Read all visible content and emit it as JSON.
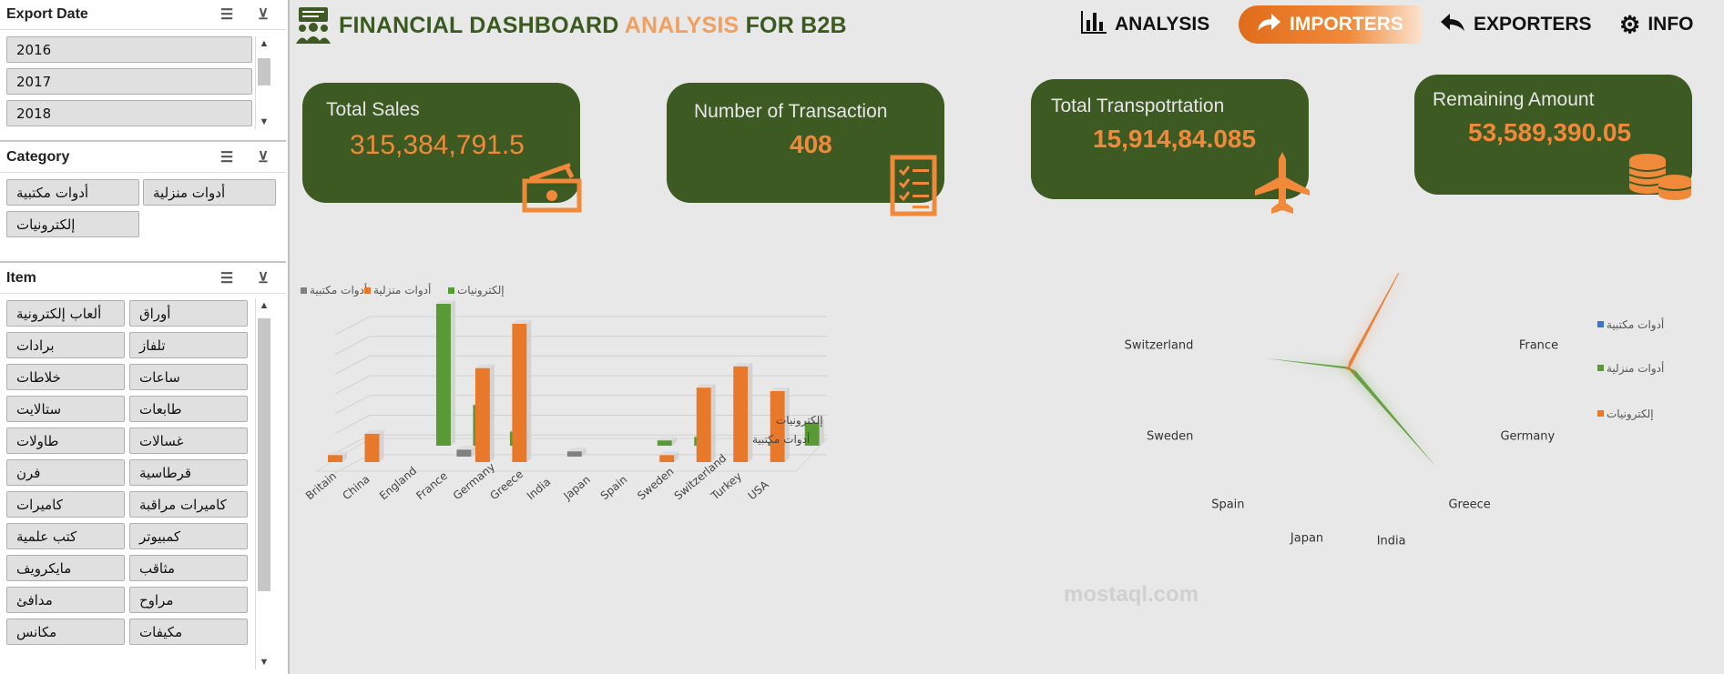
{
  "slicers": {
    "export_date": {
      "title": "Export Date",
      "items": [
        "2016",
        "2017",
        "2018"
      ]
    },
    "category": {
      "title": "Category",
      "items": [
        "أدوات مكتبية",
        "أدوات منزلية",
        "إلكترونيات"
      ]
    },
    "item": {
      "title": "Item",
      "items": [
        "ألعاب إلكترونية",
        "أوراق",
        "برادات",
        "تلفاز",
        "خلاطات",
        "ساعات",
        "ستالايت",
        "طابعات",
        "طاولات",
        "غسالات",
        "فرن",
        "قرطاسية",
        "كاميرات",
        "كاميرات مراقبة",
        "كتب علمية",
        "كمبيوتر",
        "مايكرويف",
        "مثاقب",
        "مدافئ",
        "مراوح",
        "مكانس",
        "مكيفات"
      ]
    }
  },
  "header": {
    "title_part1": "FINANCIAL DASHBOARD ",
    "title_part2": "ANALYSIS",
    "title_part3": " FOR B2B",
    "nav": {
      "analysis": "ANALYSIS",
      "importers": "IMPORTERS",
      "exporters": "EXPORTERS",
      "info": "INFO"
    }
  },
  "kpis": {
    "sales": {
      "label": "Total Sales",
      "value": "315,384,791.5"
    },
    "transactions": {
      "label": "Number of Transaction",
      "value": "408"
    },
    "transport": {
      "label": "Total Transpotrtation",
      "value": "15,914,84.085"
    },
    "remaining": {
      "label": "Remaining Amount",
      "value": "53,589,390.05"
    }
  },
  "colors": {
    "green": "#3d5a22",
    "orange": "#f08a3a",
    "bar_green": "#5a9a35",
    "bar_orange": "#e8782a",
    "bar_gray": "#808080"
  },
  "chart_data": [
    {
      "type": "bar",
      "title": "",
      "categories": [
        "Britain",
        "China",
        "England",
        "France",
        "Germany",
        "Greece",
        "India",
        "Japan",
        "Spain",
        "Sweden",
        "Switzerland",
        "Turkey",
        "USA"
      ],
      "series": [
        {
          "name": "أدوات مكتبية",
          "values": [
            0,
            0,
            0,
            4,
            0,
            0,
            3,
            0,
            0,
            0,
            0,
            0,
            0
          ]
        },
        {
          "name": "أدوات منزلية",
          "values": [
            4,
            16,
            0,
            0,
            53,
            78,
            0,
            0,
            0,
            4,
            42,
            54,
            40
          ]
        },
        {
          "name": "إلكترونيات",
          "values": [
            0,
            0,
            80,
            23,
            8,
            0,
            0,
            0,
            3,
            5,
            0,
            2,
            13
          ]
        }
      ],
      "depth_labels": [
        "إلكترونيات",
        "أدوات مكتبية"
      ],
      "legend": [
        "أدوات مكتبية",
        "أدوات منزلية",
        "إلكترونيات"
      ]
    },
    {
      "type": "radar",
      "categories": [
        "Britain",
        "China",
        "England",
        "France",
        "Germany",
        "Greece",
        "India",
        "Japan",
        "Spain",
        "Sweden",
        "Switzerland",
        "Turkey",
        "USA"
      ],
      "series": [
        {
          "name": "أدوات مكتبية",
          "values": [
            0,
            0,
            0,
            0,
            0,
            0,
            0,
            0,
            0,
            0,
            0,
            0,
            0
          ]
        },
        {
          "name": "أدوات منزلية",
          "values": [
            0,
            0,
            0,
            0,
            5,
            85,
            0,
            0,
            0,
            0,
            55,
            2,
            0
          ]
        },
        {
          "name": "إلكترونيات",
          "values": [
            4,
            90,
            0,
            0,
            0,
            8,
            0,
            0,
            0,
            2,
            0,
            0,
            0
          ]
        }
      ],
      "legend": [
        "أدوات مكتبية",
        "أدوات منزلية",
        "إلكترونيات"
      ]
    }
  ],
  "watermark": "mostaql.com"
}
